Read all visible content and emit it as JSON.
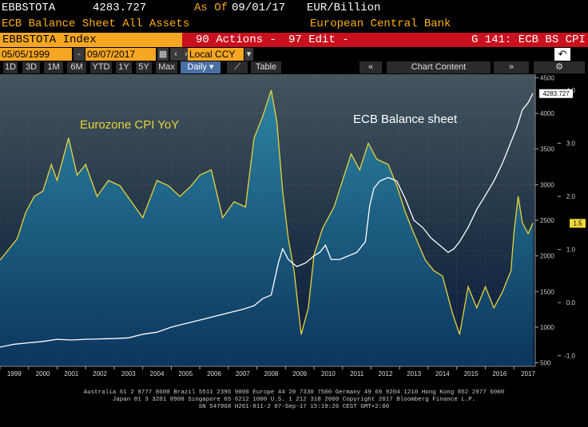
{
  "header": {
    "ticker": "EBBSTOTA",
    "value": "4283.727",
    "as_of_label": "As Of",
    "as_of_date": "09/01/17",
    "unit": "EUR/Billion",
    "description": "ECB Balance Sheet All Assets",
    "source": "European Central Bank"
  },
  "toolbar": {
    "index_label": "EBBSTOTA Index",
    "actions_label": "90 Actions -",
    "edit_label": "97 Edit -",
    "chart_id": "G 141: ECB BS CPI"
  },
  "date_bar": {
    "start_date": "05/05/1999",
    "end_date": "09/07/2017",
    "currency": "Local CCY"
  },
  "periods": [
    "1D",
    "3D",
    "1M",
    "6M",
    "YTD",
    "1Y",
    "5Y",
    "Max"
  ],
  "frequency": "Daily",
  "table_label": "Table",
  "chart_content_label": "Chart Content",
  "colors": {
    "cpi_line": "#e8d23a",
    "cpi_fill": "#1f7d9a",
    "balance_line": "#ffffff",
    "background_top": "#3d4c55",
    "background_bottom": "#0b1e3e"
  },
  "chart_data": {
    "type": "area",
    "annotations": [
      "Eurozone CPI YoY",
      "ECB Balance sheet"
    ],
    "x_tick_labels": [
      "1999",
      "2000",
      "2001",
      "2002",
      "2003",
      "2004",
      "2005",
      "2006",
      "2007",
      "2008",
      "2009",
      "2010",
      "2011",
      "2012",
      "2013",
      "2014",
      "2015",
      "2016",
      "2017"
    ],
    "left_axis": {
      "ticks": [
        4500,
        4000,
        3500,
        3000,
        2500,
        2000,
        1500,
        1000,
        500
      ],
      "range": [
        450,
        4550
      ]
    },
    "right_axis": {
      "ticks": [
        "4.0",
        "3.0",
        "2.0",
        "1.0",
        "0.0",
        "-1.0"
      ],
      "range": [
        -1.2,
        4.3
      ]
    },
    "last_value_left": "4283.727",
    "last_value_right": "1.5",
    "series": [
      {
        "name": "Eurozone CPI YoY",
        "axis": "right",
        "x": [
          1999.0,
          1999.3,
          1999.6,
          1999.9,
          2000.2,
          2000.5,
          2000.8,
          2001.0,
          2001.4,
          2001.7,
          2002.0,
          2002.4,
          2002.8,
          2003.2,
          2003.6,
          2004.0,
          2004.5,
          2004.9,
          2005.3,
          2005.7,
          2006.0,
          2006.4,
          2006.8,
          2007.2,
          2007.6,
          2007.9,
          2008.2,
          2008.5,
          2008.7,
          2008.9,
          2009.1,
          2009.3,
          2009.55,
          2009.8,
          2010.0,
          2010.3,
          2010.7,
          2011.0,
          2011.3,
          2011.6,
          2011.9,
          2012.2,
          2012.6,
          2012.9,
          2013.2,
          2013.5,
          2013.9,
          2014.2,
          2014.5,
          2014.85,
          2015.1,
          2015.4,
          2015.7,
          2016.0,
          2016.3,
          2016.6,
          2016.9,
          2017.0,
          2017.15,
          2017.3,
          2017.5,
          2017.67
        ],
        "values": [
          0.8,
          1.0,
          1.2,
          1.7,
          2.0,
          2.1,
          2.6,
          2.3,
          3.1,
          2.4,
          2.6,
          2.0,
          2.3,
          2.2,
          1.9,
          1.6,
          2.3,
          2.2,
          2.0,
          2.2,
          2.4,
          2.5,
          1.6,
          1.9,
          1.8,
          3.1,
          3.5,
          4.0,
          3.4,
          2.1,
          1.2,
          0.6,
          -0.6,
          -0.1,
          0.9,
          1.4,
          1.8,
          2.3,
          2.8,
          2.5,
          3.0,
          2.7,
          2.6,
          2.2,
          1.7,
          1.3,
          0.8,
          0.6,
          0.5,
          -0.2,
          -0.6,
          0.3,
          -0.1,
          0.3,
          -0.1,
          0.2,
          0.6,
          1.3,
          2.0,
          1.5,
          1.3,
          1.5
        ]
      },
      {
        "name": "ECB Balance sheet",
        "axis": "left",
        "x": [
          1999.0,
          1999.5,
          2000.0,
          2000.5,
          2001.0,
          2001.5,
          2002.0,
          2002.5,
          2003.0,
          2003.5,
          2004.0,
          2004.5,
          2005.0,
          2005.5,
          2006.0,
          2006.5,
          2007.0,
          2007.5,
          2007.9,
          2008.2,
          2008.5,
          2008.75,
          2008.9,
          2009.1,
          2009.4,
          2009.7,
          2010.0,
          2010.2,
          2010.4,
          2010.6,
          2010.9,
          2011.2,
          2011.5,
          2011.8,
          2011.95,
          2012.1,
          2012.3,
          2012.6,
          2012.9,
          2013.2,
          2013.5,
          2013.8,
          2014.1,
          2014.4,
          2014.7,
          2014.9,
          2015.1,
          2015.4,
          2015.7,
          2016.0,
          2016.3,
          2016.6,
          2016.9,
          2017.1,
          2017.3,
          2017.5,
          2017.67
        ],
        "values": [
          720,
          760,
          780,
          800,
          830,
          820,
          830,
          835,
          840,
          850,
          900,
          930,
          1000,
          1050,
          1100,
          1150,
          1200,
          1250,
          1300,
          1400,
          1450,
          1900,
          2100,
          1950,
          1850,
          1900,
          2000,
          2050,
          2150,
          1950,
          1950,
          2000,
          2050,
          2200,
          2700,
          2950,
          3050,
          3100,
          3050,
          2800,
          2500,
          2400,
          2250,
          2150,
          2050,
          2100,
          2200,
          2400,
          2650,
          2850,
          3050,
          3300,
          3600,
          3800,
          4050,
          4150,
          4283.727
        ]
      }
    ]
  },
  "footer": {
    "line1": "Australia 61 2 9777 8600 Brazil 5511 2395 9000 Europe 44 20 7330 7500 Germany 49 69 9204 1210 Hong Kong 852 2977 6000",
    "line2": "Japan 81 3 3201 8900        Singapore 65 6212 1000        U.S. 1 212 318 2000             Copyright 2017 Bloomberg Finance L.P.",
    "line3": "SN 547968 H261-811-2 07-Sep-17 15:19:26 CEST GMT+2:00"
  }
}
